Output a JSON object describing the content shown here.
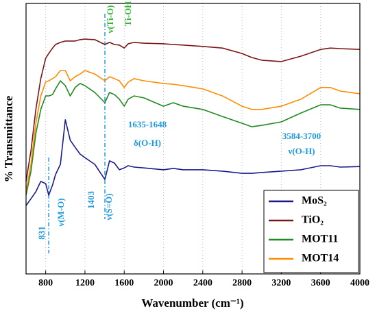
{
  "chart_data": {
    "type": "line",
    "xlabel": "Wavenumber (cm⁻¹)",
    "ylabel": "% Transmittance",
    "xlim": [
      600,
      4000
    ],
    "xticks": [
      800,
      1200,
      1600,
      2000,
      2400,
      2800,
      3200,
      3600,
      4000
    ],
    "ylim": [
      0,
      100
    ],
    "grid": true,
    "legend": "lower right",
    "x": [
      600,
      650,
      700,
      750,
      800,
      831,
      870,
      900,
      950,
      1000,
      1050,
      1100,
      1150,
      1200,
      1300,
      1403,
      1450,
      1500,
      1550,
      1600,
      1640,
      1700,
      1800,
      2000,
      2100,
      2200,
      2400,
      2600,
      2800,
      2900,
      3000,
      3200,
      3400,
      3600,
      3700,
      3800,
      4000
    ],
    "series": [
      {
        "name": "MoS₂",
        "color": "#1a1a8c",
        "values": [
          25.3,
          27.8,
          30.4,
          34.2,
          33.4,
          29.1,
          32.9,
          36.7,
          40.5,
          57.0,
          49.4,
          46.8,
          44.3,
          43.0,
          40.5,
          34.9,
          41.8,
          41.0,
          38.5,
          39.2,
          40.0,
          39.5,
          39.2,
          38.5,
          39.0,
          38.5,
          38.5,
          38.0,
          37.2,
          37.2,
          37.5,
          38.0,
          38.5,
          40.0,
          40.0,
          39.5,
          39.7
        ]
      },
      {
        "name": "TiO₂",
        "color": "#7a1515",
        "values": [
          34.2,
          45.6,
          60.8,
          72.2,
          79.7,
          81.5,
          83.5,
          84.8,
          85.6,
          86.1,
          86.1,
          86.1,
          86.6,
          86.8,
          86.6,
          84.8,
          85.6,
          84.8,
          84.6,
          83.5,
          85.1,
          85.6,
          85.3,
          85.1,
          84.8,
          84.6,
          84.1,
          83.5,
          81.5,
          80.0,
          79.0,
          78.5,
          80.5,
          83.0,
          83.5,
          83.3,
          83.0
        ]
      },
      {
        "name": "MOT11",
        "color": "#1f8a1f",
        "values": [
          29.1,
          38.0,
          51.9,
          60.8,
          65.8,
          65.8,
          66.3,
          68.4,
          71.4,
          69.6,
          65.8,
          68.9,
          70.4,
          69.6,
          67.1,
          63.3,
          67.1,
          66.3,
          64.6,
          62.0,
          64.6,
          65.8,
          65.1,
          62.0,
          63.3,
          62.0,
          60.8,
          58.2,
          55.7,
          54.4,
          54.9,
          56.2,
          59.5,
          62.5,
          62.5,
          61.3,
          60.8
        ]
      },
      {
        "name": "MOT14",
        "color": "#ff8c00",
        "values": [
          30.4,
          40.5,
          55.7,
          65.8,
          70.9,
          71.4,
          72.2,
          72.9,
          75.2,
          75.2,
          71.4,
          72.9,
          73.9,
          75.2,
          73.9,
          71.4,
          72.9,
          72.2,
          71.4,
          68.9,
          70.9,
          72.2,
          71.4,
          70.4,
          70.1,
          69.6,
          68.4,
          65.8,
          62.0,
          60.8,
          60.8,
          62.0,
          64.6,
          68.9,
          68.9,
          67.6,
          66.6
        ]
      }
    ],
    "vlines": [
      831,
      1403
    ],
    "annotations": [
      "831",
      "ν(M-O)",
      "1403",
      "ν(S=O)",
      "ν(Ti-O)",
      "Ti-OH",
      "1635-1648",
      "δ(O-H)",
      "3584-3700",
      "ν(O-H)"
    ]
  }
}
